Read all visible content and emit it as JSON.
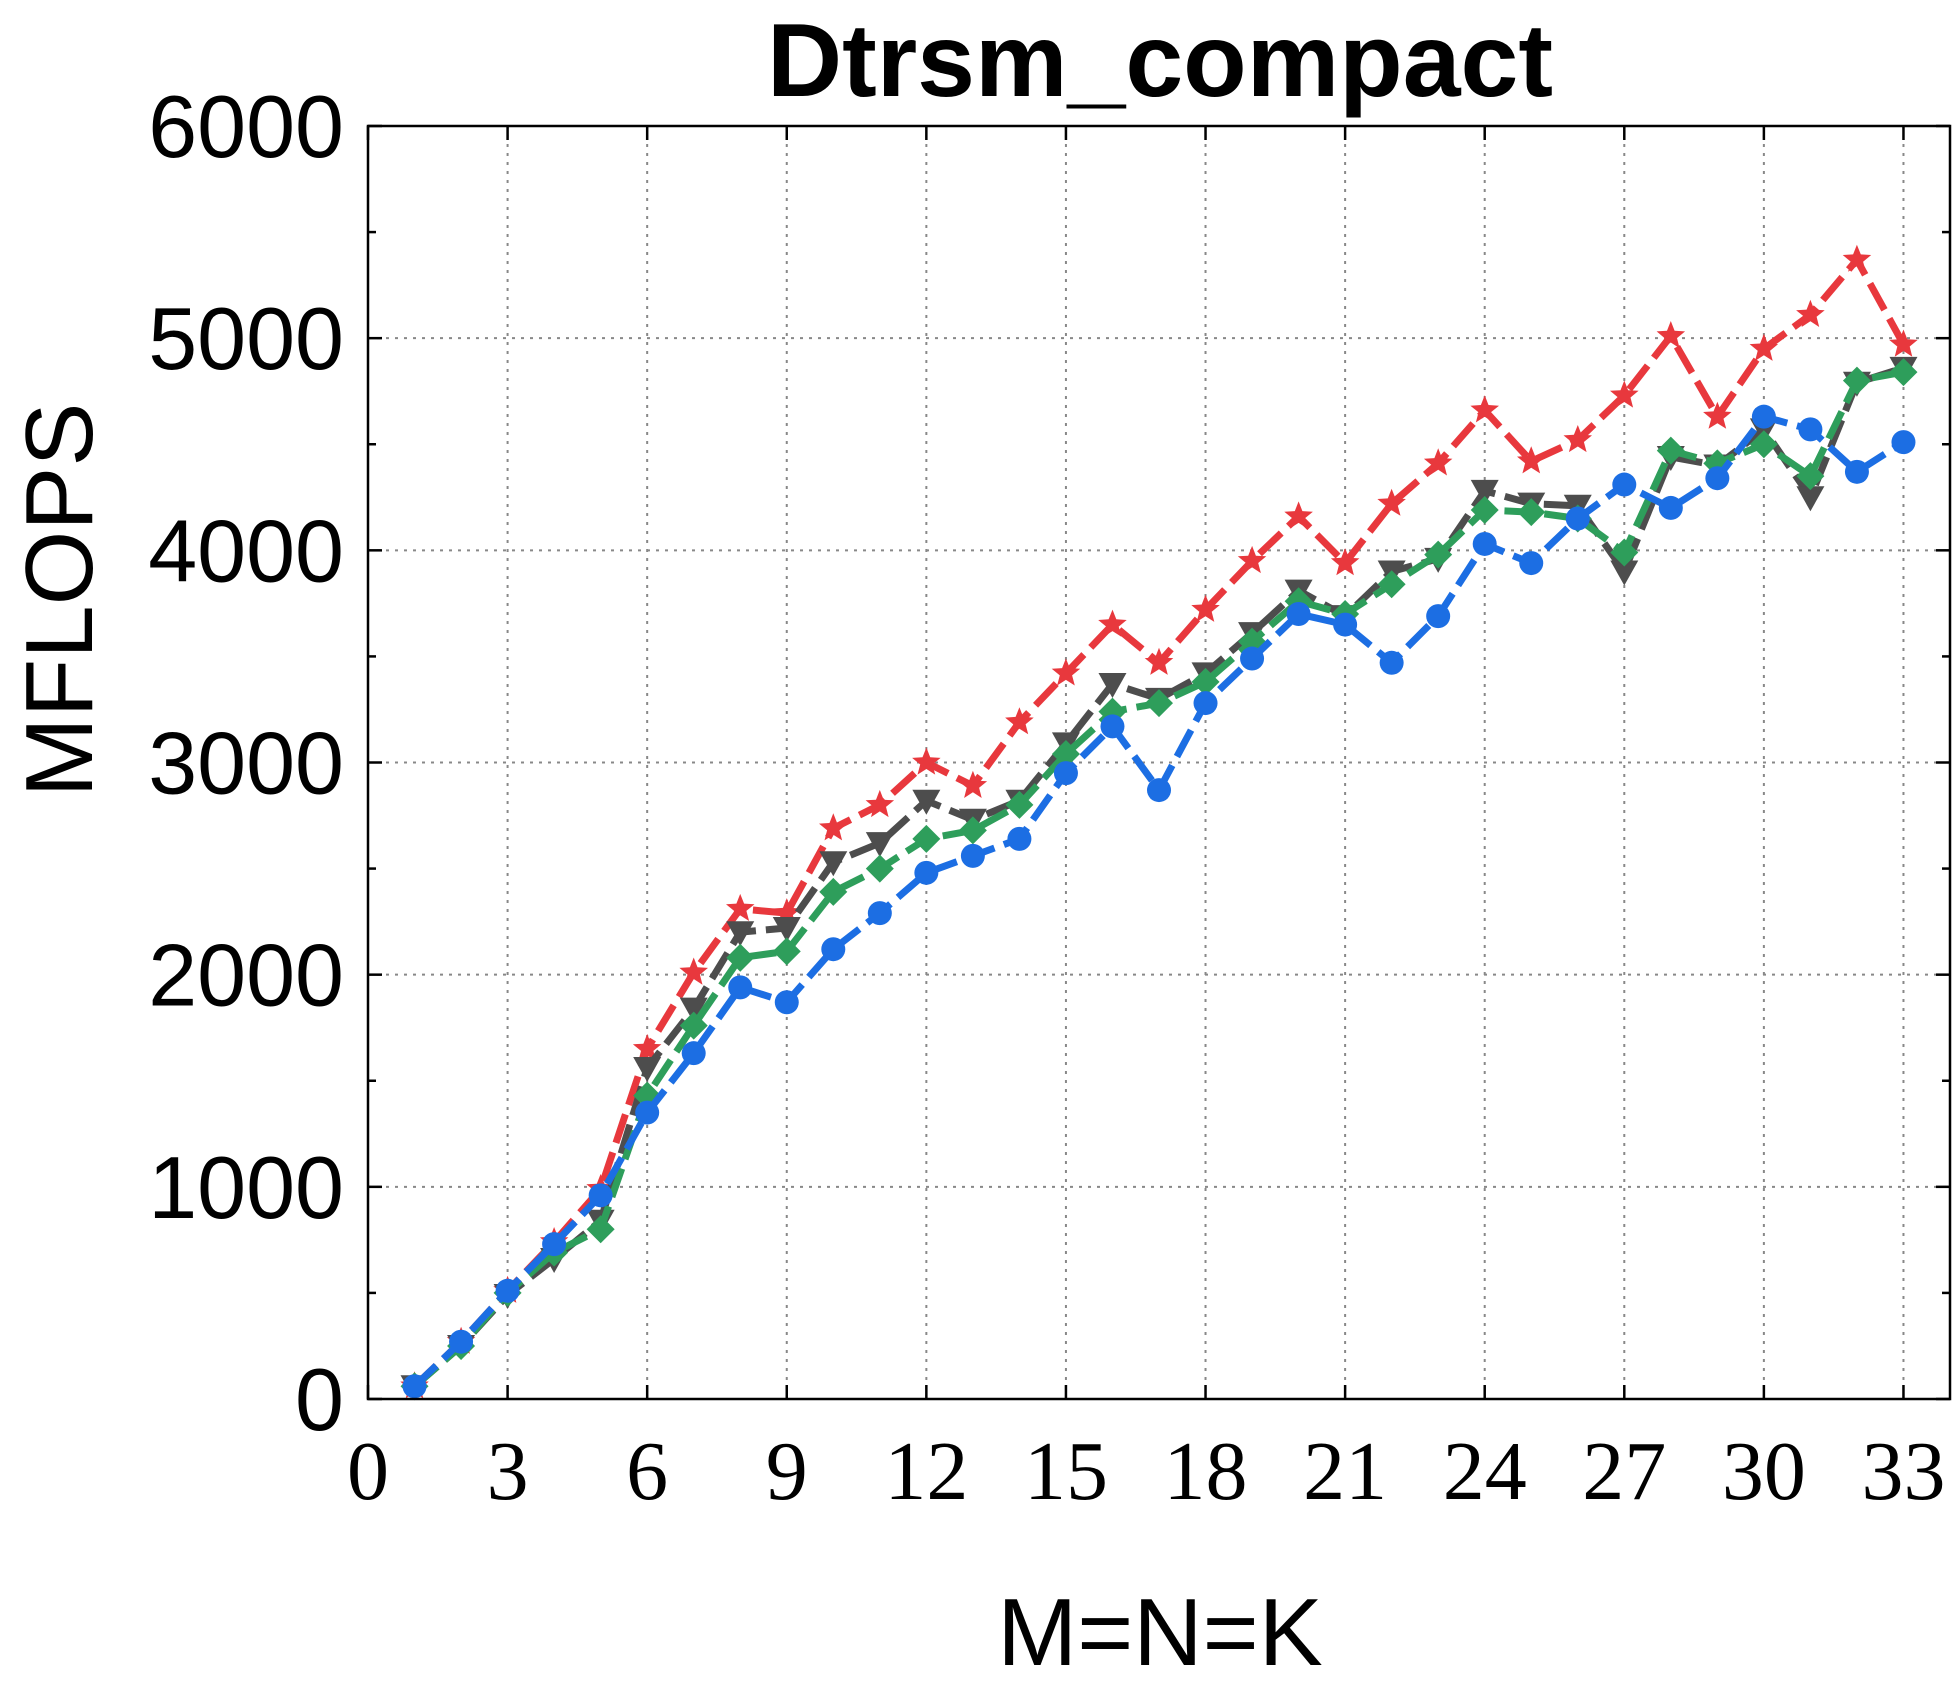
{
  "chart_data": {
    "type": "line",
    "title": "Dtrsm_compact",
    "xlabel": "M=N=K",
    "ylabel": "MFLOPS",
    "xlim": [
      0,
      34
    ],
    "ylim": [
      0,
      6000
    ],
    "xticks": [
      0,
      3,
      6,
      9,
      12,
      15,
      18,
      21,
      24,
      27,
      30,
      33
    ],
    "yticks": [
      0,
      1000,
      2000,
      3000,
      4000,
      5000,
      6000
    ],
    "grid": true,
    "x": [
      1,
      2,
      3,
      4,
      5,
      6,
      7,
      8,
      9,
      10,
      11,
      12,
      13,
      14,
      15,
      16,
      17,
      18,
      19,
      20,
      21,
      22,
      23,
      24,
      25,
      26,
      27,
      28,
      29,
      30,
      31,
      32,
      33
    ],
    "series": [
      {
        "color": "#e8383d",
        "marker": "star",
        "values": [
          60,
          270,
          510,
          740,
          990,
          1650,
          2010,
          2310,
          2290,
          2690,
          2800,
          3000,
          2890,
          3190,
          3420,
          3650,
          3470,
          3720,
          3950,
          4160,
          3940,
          4220,
          4410,
          4660,
          4420,
          4520,
          4730,
          5010,
          4630,
          4950,
          5110,
          5370,
          4970
        ]
      },
      {
        "color": "#4d4d4d",
        "marker": "triangle-down",
        "values": [
          60,
          250,
          490,
          660,
          840,
          1560,
          1840,
          2200,
          2220,
          2530,
          2620,
          2820,
          2730,
          2820,
          3090,
          3370,
          3300,
          3420,
          3610,
          3810,
          3690,
          3900,
          3960,
          4280,
          4220,
          4210,
          3900,
          4440,
          4400,
          4570,
          4250,
          4790,
          4860
        ]
      },
      {
        "color": "#2e9e5b",
        "marker": "diamond",
        "values": [
          60,
          250,
          500,
          690,
          800,
          1430,
          1760,
          2080,
          2110,
          2390,
          2500,
          2640,
          2680,
          2800,
          3040,
          3240,
          3280,
          3380,
          3570,
          3760,
          3700,
          3840,
          3980,
          4190,
          4180,
          4150,
          3990,
          4470,
          4410,
          4500,
          4350,
          4800,
          4840
        ]
      },
      {
        "color": "#1c6ee3",
        "marker": "circle",
        "values": [
          60,
          270,
          510,
          730,
          960,
          1350,
          1630,
          1940,
          1870,
          2120,
          2290,
          2480,
          2560,
          2640,
          2950,
          3170,
          2870,
          3280,
          3490,
          3700,
          3650,
          3470,
          3690,
          4030,
          3940,
          4150,
          4310,
          4200,
          4340,
          4630,
          4570,
          4370,
          4510
        ]
      }
    ]
  }
}
